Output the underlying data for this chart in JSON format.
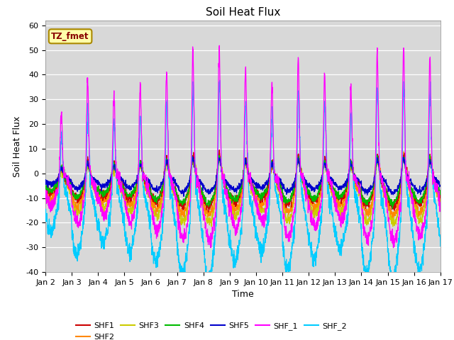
{
  "title": "Soil Heat Flux",
  "xlabel": "Time",
  "ylabel": "Soil Heat Flux",
  "xlim": [
    0,
    15
  ],
  "ylim": [
    -40,
    62
  ],
  "yticks": [
    -40,
    -30,
    -20,
    -10,
    0,
    10,
    20,
    30,
    40,
    50,
    60
  ],
  "xtick_labels": [
    "Jan 2",
    "Jan 3",
    "Jan 4",
    "Jan 5",
    "Jan 6",
    "Jan 7",
    "Jan 8",
    "Jan 9",
    "Jan 10",
    "Jan 11",
    "Jan 12",
    "Jan 13",
    "Jan 14",
    "Jan 15",
    "Jan 16",
    "Jan 17"
  ],
  "series_colors": {
    "SHF1": "#cc0000",
    "SHF2": "#ff8800",
    "SHF3": "#cccc00",
    "SHF4": "#00bb00",
    "SHF5": "#0000cc",
    "SHF_1": "#ff00ff",
    "SHF_2": "#00ccff"
  },
  "annotation_text": "TZ_fmet",
  "annotation_fg": "#880000",
  "annotation_bg": "#ffffaa",
  "annotation_edge": "#aa8800",
  "background_color": "#d8d8d8",
  "title_fontsize": 11,
  "axis_label_fontsize": 9,
  "tick_fontsize": 8,
  "n_days": 15,
  "pts_per_day": 144,
  "day_peak_amps": [
    0.55,
    0.85,
    0.7,
    0.8,
    0.95,
    1.1,
    1.15,
    0.95,
    0.8,
    1.05,
    0.9,
    0.8,
    1.1,
    1.15,
    1.05
  ],
  "legend_ncol": 6
}
